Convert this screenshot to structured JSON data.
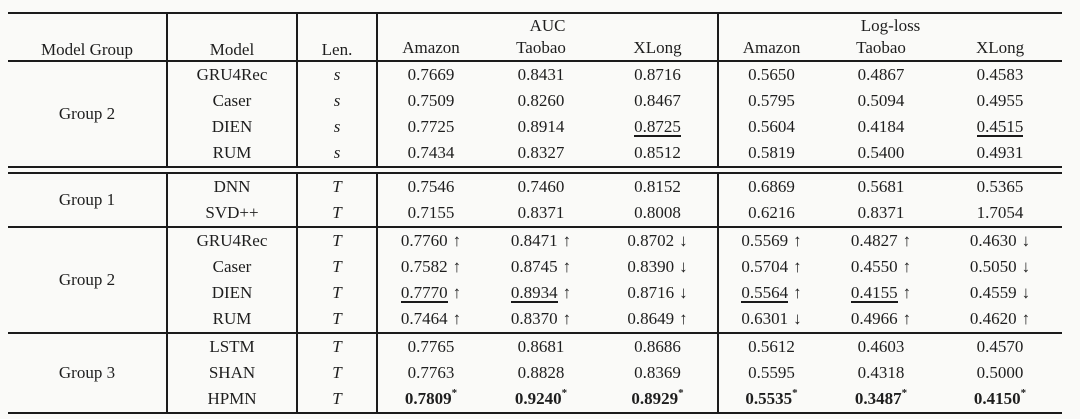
{
  "table": {
    "headers": {
      "model_group": "Model Group",
      "model": "Model",
      "len": "Len.",
      "auc": "AUC",
      "logloss": "Log-loss",
      "datasets": [
        "Amazon",
        "Taobao",
        "XLong"
      ]
    },
    "groups": [
      {
        "label": "Group 2",
        "double_rule_below": true,
        "rows": [
          {
            "model": "GRU4Rec",
            "len": "s",
            "auc": [
              {
                "v": "0.7669"
              },
              {
                "v": "0.8431"
              },
              {
                "v": "0.8716"
              }
            ],
            "logloss": [
              {
                "v": "0.5650"
              },
              {
                "v": "0.4867"
              },
              {
                "v": "0.4583"
              }
            ]
          },
          {
            "model": "Caser",
            "len": "s",
            "auc": [
              {
                "v": "0.7509"
              },
              {
                "v": "0.8260"
              },
              {
                "v": "0.8467"
              }
            ],
            "logloss": [
              {
                "v": "0.5795"
              },
              {
                "v": "0.5094"
              },
              {
                "v": "0.4955"
              }
            ]
          },
          {
            "model": "DIEN",
            "len": "s",
            "auc": [
              {
                "v": "0.7725"
              },
              {
                "v": "0.8914"
              },
              {
                "v": "0.8725",
                "u": true
              }
            ],
            "logloss": [
              {
                "v": "0.5604"
              },
              {
                "v": "0.4184"
              },
              {
                "v": "0.4515",
                "u": true
              }
            ]
          },
          {
            "model": "RUM",
            "len": "s",
            "auc": [
              {
                "v": "0.7434"
              },
              {
                "v": "0.8327"
              },
              {
                "v": "0.8512"
              }
            ],
            "logloss": [
              {
                "v": "0.5819"
              },
              {
                "v": "0.5400"
              },
              {
                "v": "0.4931"
              }
            ]
          }
        ]
      },
      {
        "label": "Group 1",
        "double_rule_below": false,
        "rows": [
          {
            "model": "DNN",
            "len": "T",
            "auc": [
              {
                "v": "0.7546"
              },
              {
                "v": "0.7460"
              },
              {
                "v": "0.8152"
              }
            ],
            "logloss": [
              {
                "v": "0.6869"
              },
              {
                "v": "0.5681"
              },
              {
                "v": "0.5365"
              }
            ]
          },
          {
            "model": "SVD++",
            "len": "T",
            "auc": [
              {
                "v": "0.7155"
              },
              {
                "v": "0.8371"
              },
              {
                "v": "0.8008"
              }
            ],
            "logloss": [
              {
                "v": "0.6216"
              },
              {
                "v": "0.8371"
              },
              {
                "v": "1.7054"
              }
            ]
          }
        ]
      },
      {
        "label": "Group 2",
        "double_rule_below": false,
        "rows": [
          {
            "model": "GRU4Rec",
            "len": "T",
            "auc": [
              {
                "v": "0.7760",
                "a": "↑"
              },
              {
                "v": "0.8471",
                "a": "↑"
              },
              {
                "v": "0.8702",
                "a": "↓"
              }
            ],
            "logloss": [
              {
                "v": "0.5569",
                "a": "↑"
              },
              {
                "v": "0.4827",
                "a": "↑"
              },
              {
                "v": "0.4630",
                "a": "↓"
              }
            ]
          },
          {
            "model": "Caser",
            "len": "T",
            "auc": [
              {
                "v": "0.7582",
                "a": "↑"
              },
              {
                "v": "0.8745",
                "a": "↑"
              },
              {
                "v": "0.8390",
                "a": "↓"
              }
            ],
            "logloss": [
              {
                "v": "0.5704",
                "a": "↑"
              },
              {
                "v": "0.4550",
                "a": "↑"
              },
              {
                "v": "0.5050",
                "a": "↓"
              }
            ]
          },
          {
            "model": "DIEN",
            "len": "T",
            "auc": [
              {
                "v": "0.7770",
                "a": "↑",
                "u": true
              },
              {
                "v": "0.8934",
                "a": "↑",
                "u": true
              },
              {
                "v": "0.8716",
                "a": "↓"
              }
            ],
            "logloss": [
              {
                "v": "0.5564",
                "a": "↑",
                "u": true
              },
              {
                "v": "0.4155",
                "a": "↑",
                "u": true
              },
              {
                "v": "0.4559",
                "a": "↓"
              }
            ]
          },
          {
            "model": "RUM",
            "len": "T",
            "auc": [
              {
                "v": "0.7464",
                "a": "↑"
              },
              {
                "v": "0.8370",
                "a": "↑"
              },
              {
                "v": "0.8649",
                "a": "↑"
              }
            ],
            "logloss": [
              {
                "v": "0.6301",
                "a": "↓"
              },
              {
                "v": "0.4966",
                "a": "↑"
              },
              {
                "v": "0.4620",
                "a": "↑"
              }
            ]
          }
        ]
      },
      {
        "label": "Group 3",
        "double_rule_below": false,
        "rows": [
          {
            "model": "LSTM",
            "len": "T",
            "auc": [
              {
                "v": "0.7765"
              },
              {
                "v": "0.8681"
              },
              {
                "v": "0.8686"
              }
            ],
            "logloss": [
              {
                "v": "0.5612"
              },
              {
                "v": "0.4603"
              },
              {
                "v": "0.4570"
              }
            ]
          },
          {
            "model": "SHAN",
            "len": "T",
            "auc": [
              {
                "v": "0.7763"
              },
              {
                "v": "0.8828"
              },
              {
                "v": "0.8369"
              }
            ],
            "logloss": [
              {
                "v": "0.5595"
              },
              {
                "v": "0.4318"
              },
              {
                "v": "0.5000"
              }
            ]
          },
          {
            "model": "HPMN",
            "len": "T",
            "auc": [
              {
                "v": "0.7809",
                "b": true,
                "s": true
              },
              {
                "v": "0.9240",
                "b": true,
                "s": true
              },
              {
                "v": "0.8929",
                "b": true,
                "s": true
              }
            ],
            "logloss": [
              {
                "v": "0.5535",
                "b": true,
                "s": true
              },
              {
                "v": "0.3487",
                "b": true,
                "s": true
              },
              {
                "v": "0.4150",
                "b": true,
                "s": true
              }
            ]
          }
        ]
      }
    ]
  }
}
